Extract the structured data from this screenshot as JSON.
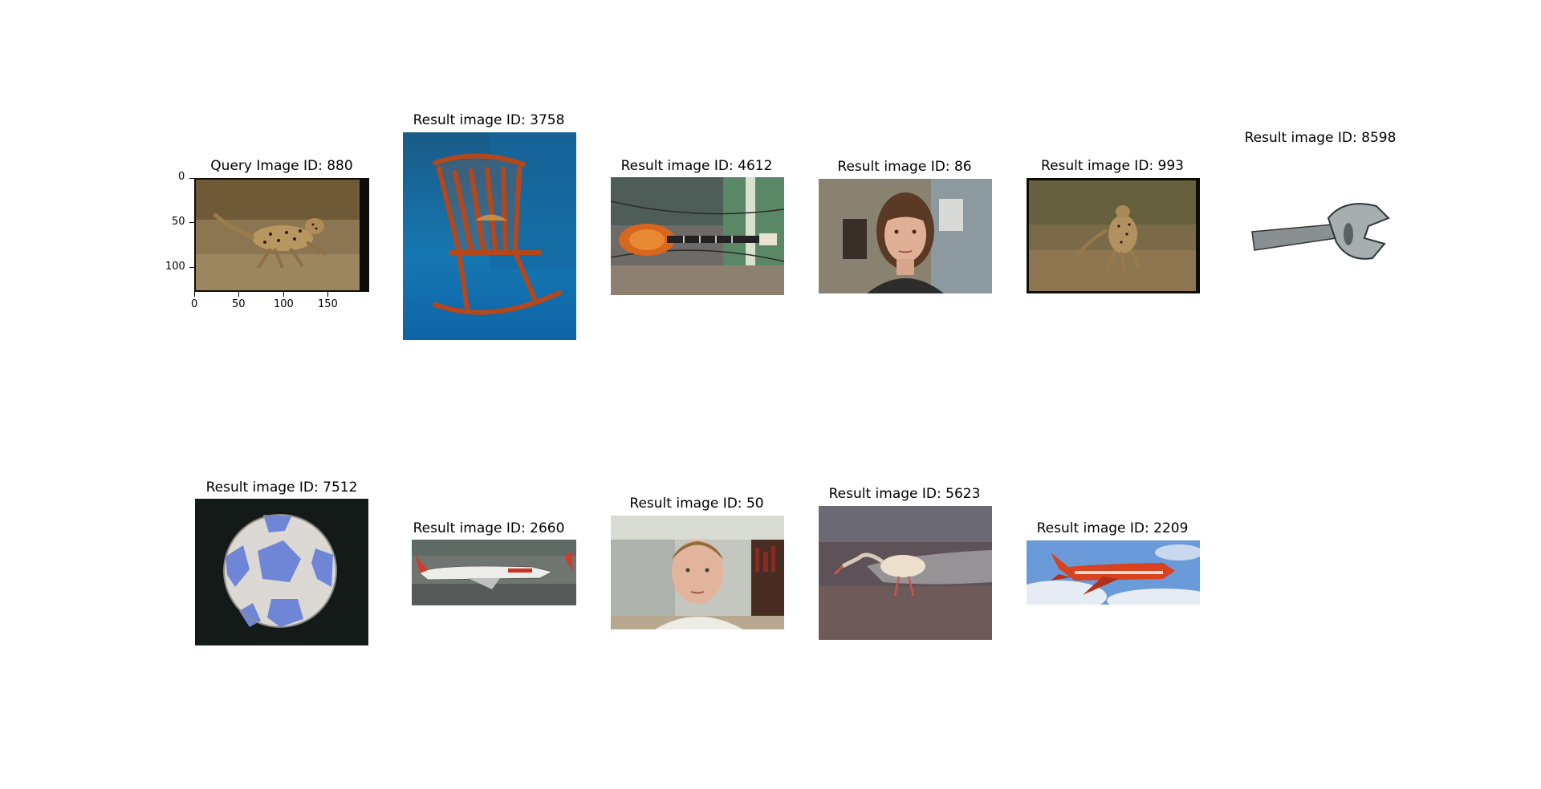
{
  "query": {
    "title": "Query Image ID: 880",
    "y_ticks": [
      "0",
      "50",
      "100"
    ],
    "x_ticks": [
      "0",
      "50",
      "100",
      "150"
    ]
  },
  "results": [
    {
      "title": "Result image ID: 3758",
      "subject": "rocking-chair"
    },
    {
      "title": "Result image ID: 4612",
      "subject": "guitar"
    },
    {
      "title": "Result image ID: 86",
      "subject": "woman-portrait"
    },
    {
      "title": "Result image ID: 993",
      "subject": "cheetah"
    },
    {
      "title": "Result image ID: 8598",
      "subject": "wrench"
    },
    {
      "title": "Result image ID: 7512",
      "subject": "soccer-ball"
    },
    {
      "title": "Result image ID: 2660",
      "subject": "airplane-runway"
    },
    {
      "title": "Result image ID: 50",
      "subject": "man-portrait"
    },
    {
      "title": "Result image ID: 5623",
      "subject": "ibis-bird"
    },
    {
      "title": "Result image ID: 2209",
      "subject": "airplane-sky"
    }
  ]
}
